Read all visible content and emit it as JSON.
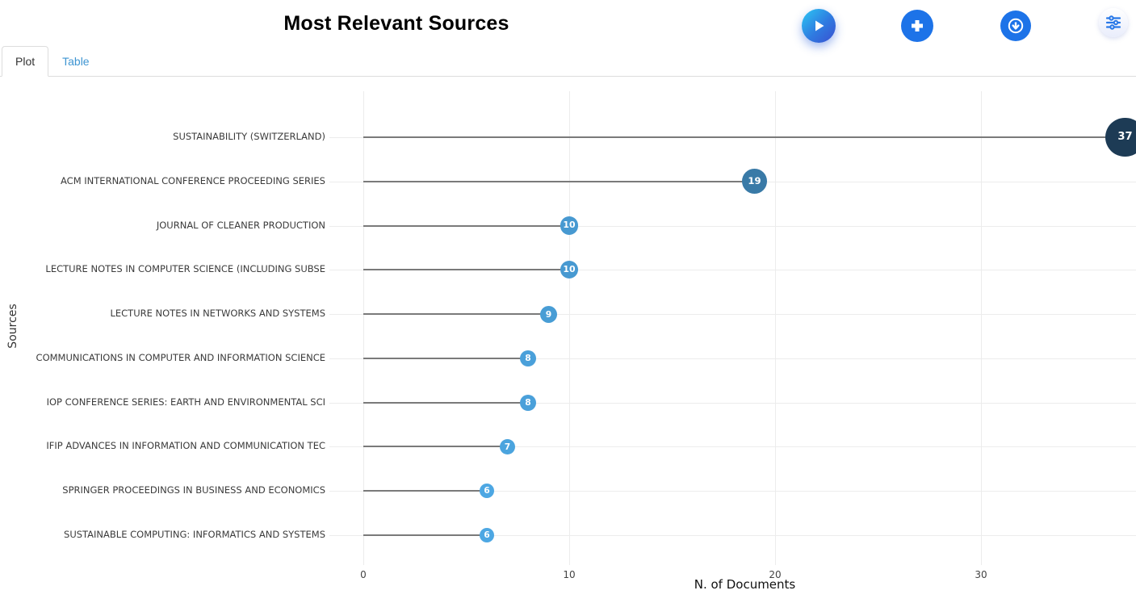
{
  "header": {
    "title": "Most Relevant Sources",
    "buttons": [
      {
        "name": "run",
        "icon": "play-icon"
      },
      {
        "name": "add",
        "icon": "plus-icon"
      },
      {
        "name": "download",
        "icon": "download-icon"
      },
      {
        "name": "settings",
        "icon": "sliders-icon"
      }
    ]
  },
  "tabs": [
    {
      "label": "Plot",
      "active": true
    },
    {
      "label": "Table",
      "active": false
    }
  ],
  "chart_data": {
    "type": "scatter",
    "subtype": "lollipop-horizontal",
    "title": "Most Relevant Sources",
    "xlabel": "N. of Documents",
    "ylabel": "Sources",
    "x_ticks": [
      0,
      10,
      20,
      30
    ],
    "xlim": [
      -1.6,
      37.6
    ],
    "grid": true,
    "legend": false,
    "categories": [
      "SUSTAINABILITY (SWITZERLAND)",
      "ACM INTERNATIONAL CONFERENCE PROCEEDING SERIES",
      "JOURNAL OF CLEANER PRODUCTION",
      "LECTURE NOTES IN COMPUTER SCIENCE (INCLUDING SUBSE",
      "LECTURE NOTES IN NETWORKS AND SYSTEMS",
      "COMMUNICATIONS IN COMPUTER AND INFORMATION SCIENCE",
      "IOP CONFERENCE SERIES: EARTH AND ENVIRONMENTAL SCI",
      "IFIP ADVANCES IN INFORMATION AND COMMUNICATION TEC",
      "SPRINGER PROCEEDINGS IN BUSINESS AND ECONOMICS",
      "SUSTAINABLE COMPUTING: INFORMATICS AND SYSTEMS"
    ],
    "values": [
      37,
      19,
      10,
      10,
      9,
      8,
      8,
      7,
      6,
      6
    ],
    "colors": {
      "dot_min": "#4da7e3",
      "dot_max": "#1d3b55",
      "stem": "#7a7a7a",
      "grid": "#ececec",
      "accent_blue": "#1d73e8"
    }
  }
}
